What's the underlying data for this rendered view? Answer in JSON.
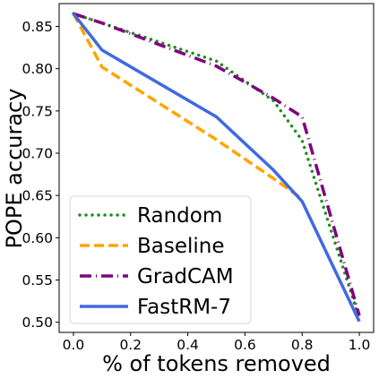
{
  "chart_data": {
    "type": "line",
    "title": "",
    "xlabel": "% of tokens removed",
    "ylabel": "POPE accuracy",
    "xlim": [
      -0.05,
      1.05
    ],
    "ylim": [
      0.488,
      0.877
    ],
    "xticks": [
      0.0,
      0.2,
      0.4,
      0.6,
      0.8,
      1.0
    ],
    "xtick_labels": [
      "0.0",
      "0.2",
      "0.4",
      "0.6",
      "0.8",
      "1.0"
    ],
    "yticks": [
      0.5,
      0.55,
      0.6,
      0.65,
      0.7,
      0.75,
      0.8,
      0.85
    ],
    "ytick_labels": [
      "0.50",
      "0.55",
      "0.60",
      "0.65",
      "0.70",
      "0.75",
      "0.80",
      "0.85"
    ],
    "grid": false,
    "legend_position": "lower-left",
    "series": [
      {
        "name": "Random",
        "color": "#1e8c1e",
        "dash": "dotted",
        "x": [
          0.0,
          0.1,
          0.5,
          0.7,
          0.8,
          1.0
        ],
        "y": [
          0.865,
          0.854,
          0.809,
          0.762,
          0.715,
          0.505
        ]
      },
      {
        "name": "Baseline",
        "color": "#ffa500",
        "dash": "dashed",
        "x": [
          0.0,
          0.1,
          0.5,
          0.7,
          0.8
        ],
        "y": [
          0.865,
          0.802,
          0.716,
          0.67,
          0.646
        ]
      },
      {
        "name": "GradCAM",
        "color": "#800080",
        "dash": "dashdot",
        "x": [
          0.0,
          0.1,
          0.5,
          0.7,
          0.8,
          1.0
        ],
        "y": [
          0.865,
          0.854,
          0.803,
          0.765,
          0.743,
          0.508
        ]
      },
      {
        "name": "FastRM-7",
        "color": "#4169e1",
        "dash": "solid",
        "x": [
          0.0,
          0.1,
          0.5,
          0.7,
          0.8,
          1.0
        ],
        "y": [
          0.865,
          0.822,
          0.743,
          0.68,
          0.643,
          0.501
        ]
      }
    ]
  }
}
